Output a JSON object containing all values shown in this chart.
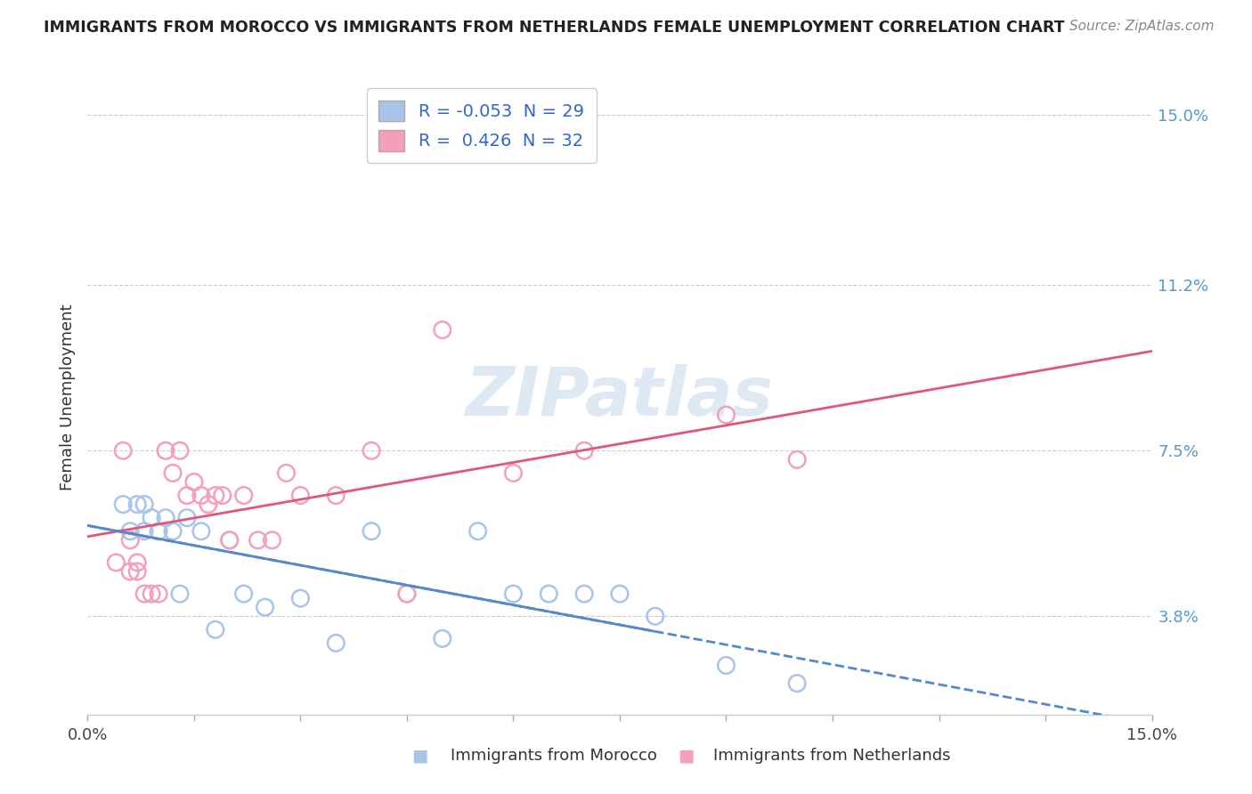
{
  "title": "IMMIGRANTS FROM MOROCCO VS IMMIGRANTS FROM NETHERLANDS FEMALE UNEMPLOYMENT CORRELATION CHART",
  "source": "Source: ZipAtlas.com",
  "xlabel_morocco": "Immigrants from Morocco",
  "xlabel_netherlands": "Immigrants from Netherlands",
  "ylabel": "Female Unemployment",
  "r_morocco": -0.053,
  "n_morocco": 29,
  "r_netherlands": 0.426,
  "n_netherlands": 32,
  "color_morocco": "#a8c4e8",
  "color_netherlands": "#f4a0b8",
  "line_color_morocco": "#5588cc",
  "line_color_netherlands": "#e05878",
  "xmin": 0.0,
  "xmax": 0.15,
  "ymin": 0.016,
  "ymax": 0.158,
  "yticks": [
    0.038,
    0.075,
    0.112,
    0.15
  ],
  "ytick_labels": [
    "3.8%",
    "7.5%",
    "11.2%",
    "15.0%"
  ],
  "watermark": "ZIPatlas",
  "background_color": "#ffffff",
  "title_color": "#222222",
  "source_color": "#888888",
  "label_color": "#555555",
  "grid_color": "#cccccc",
  "morocco_x": [
    0.005,
    0.006,
    0.007,
    0.008,
    0.008,
    0.009,
    0.01,
    0.011,
    0.012,
    0.013,
    0.014,
    0.016,
    0.018,
    0.02,
    0.022,
    0.025,
    0.03,
    0.035,
    0.04,
    0.045,
    0.05,
    0.055,
    0.06,
    0.065,
    0.07,
    0.075,
    0.08,
    0.09,
    0.1
  ],
  "morocco_y": [
    0.063,
    0.057,
    0.063,
    0.057,
    0.063,
    0.06,
    0.057,
    0.06,
    0.057,
    0.043,
    0.06,
    0.057,
    0.035,
    0.055,
    0.043,
    0.04,
    0.042,
    0.032,
    0.057,
    0.043,
    0.033,
    0.057,
    0.043,
    0.043,
    0.043,
    0.043,
    0.038,
    0.027,
    0.023
  ],
  "netherlands_x": [
    0.004,
    0.005,
    0.006,
    0.006,
    0.007,
    0.007,
    0.008,
    0.009,
    0.01,
    0.011,
    0.012,
    0.013,
    0.014,
    0.015,
    0.016,
    0.017,
    0.018,
    0.019,
    0.02,
    0.022,
    0.024,
    0.026,
    0.028,
    0.03,
    0.035,
    0.04,
    0.045,
    0.05,
    0.06,
    0.07,
    0.09,
    0.1
  ],
  "netherlands_y": [
    0.05,
    0.075,
    0.048,
    0.055,
    0.048,
    0.05,
    0.043,
    0.043,
    0.043,
    0.075,
    0.07,
    0.075,
    0.065,
    0.068,
    0.065,
    0.063,
    0.065,
    0.065,
    0.055,
    0.065,
    0.055,
    0.055,
    0.07,
    0.065,
    0.065,
    0.075,
    0.043,
    0.102,
    0.07,
    0.075,
    0.083,
    0.073
  ]
}
